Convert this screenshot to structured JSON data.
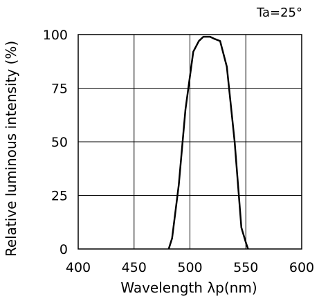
{
  "chart_data": {
    "type": "line",
    "title": "",
    "annotation": "Ta=25°",
    "xlabel": "Wavelength λp(nm)",
    "ylabel": "Relative luminous intensity (%)",
    "xlim": [
      400,
      600
    ],
    "ylim": [
      0,
      100
    ],
    "xticks": [
      400,
      450,
      500,
      550,
      600
    ],
    "yticks": [
      0,
      25,
      50,
      75,
      100
    ],
    "x_tick_labels": [
      "400",
      "450",
      "500",
      "550",
      "600"
    ],
    "y_tick_labels": [
      "0",
      "25",
      "50",
      "75",
      "100"
    ],
    "grid": true,
    "series": [
      {
        "color": "#000000",
        "x": [
          481,
          484,
          490,
          496,
          503,
          508,
          512,
          518,
          522,
          527,
          533,
          540,
          546,
          550,
          552
        ],
        "y": [
          0,
          5,
          30,
          65,
          92,
          97,
          99,
          99,
          98,
          97,
          85,
          50,
          10,
          3,
          0
        ]
      }
    ]
  }
}
